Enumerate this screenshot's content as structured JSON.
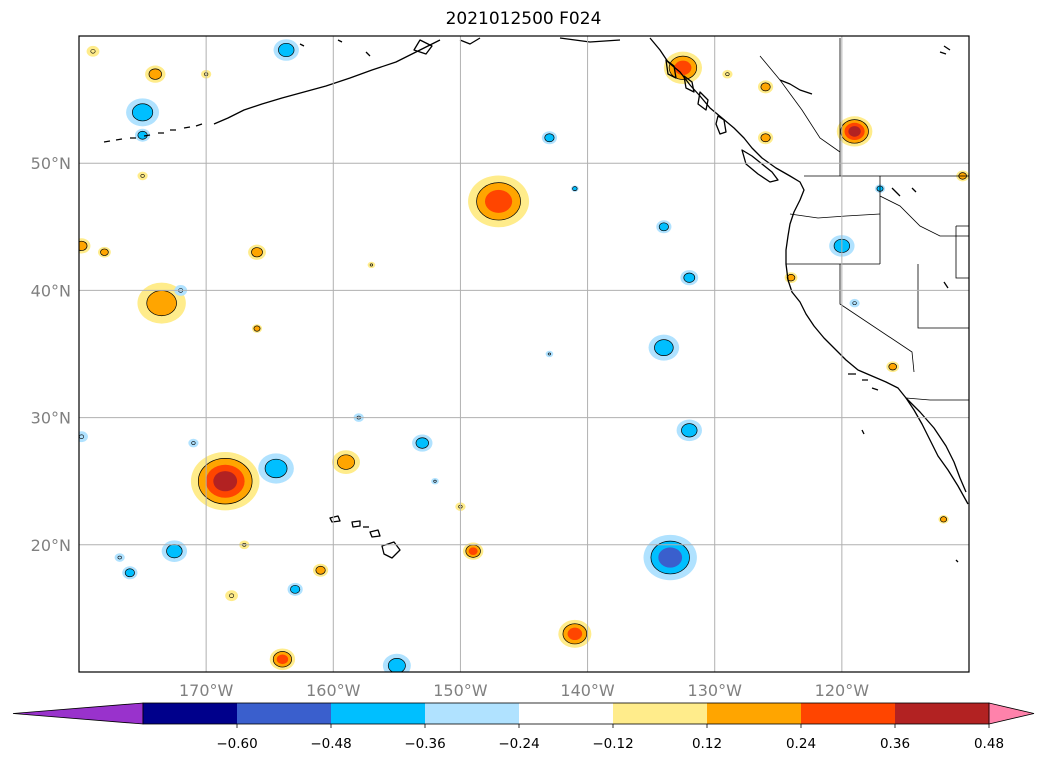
{
  "title": "2021012500 F024",
  "map": {
    "lon_range": [
      -180,
      -110
    ],
    "lat_range": [
      10,
      60
    ],
    "lon_ticks": [
      {
        "value": -170,
        "label": "170°W"
      },
      {
        "value": -160,
        "label": "160°W"
      },
      {
        "value": -150,
        "label": "150°W"
      },
      {
        "value": -140,
        "label": "140°W"
      },
      {
        "value": -130,
        "label": "130°W"
      },
      {
        "value": -120,
        "label": "120°W"
      }
    ],
    "lat_ticks": [
      {
        "value": 20,
        "label": "20°N"
      },
      {
        "value": 30,
        "label": "30°N"
      },
      {
        "value": 40,
        "label": "40°N"
      },
      {
        "value": 50,
        "label": "50°N"
      }
    ],
    "gridlines": true,
    "tick_label_color": "#808080"
  },
  "colorbar": {
    "orientation": "horizontal",
    "extend": "both",
    "bounds": [
      -0.6,
      -0.48,
      -0.36,
      -0.24,
      -0.12,
      0.12,
      0.24,
      0.36,
      0.48,
      0.6
    ],
    "labels": [
      "−0.60",
      "−0.48",
      "−0.36",
      "−0.24",
      "−0.12",
      "0.12",
      "0.24",
      "0.36",
      "0.48",
      "0.60"
    ],
    "colors": [
      "#9932cc",
      "#00008b",
      "#3a5fcd",
      "#00bfff",
      "#b0e2ff",
      "#ffffff",
      "#ffec8b",
      "#ffa500",
      "#ff4500",
      "#b22222",
      "#ff82ab"
    ]
  },
  "anomalies": [
    {
      "lon": -163.7,
      "lat": 58.9,
      "r": 1.0,
      "level": -2
    },
    {
      "lon": -178.9,
      "lat": 58.8,
      "r": 0.5,
      "level": 1
    },
    {
      "lon": -174.0,
      "lat": 57.0,
      "r": 0.8,
      "level": 2
    },
    {
      "lon": -170.0,
      "lat": 57.0,
      "r": 0.4,
      "level": 1
    },
    {
      "lon": -175.0,
      "lat": 54.0,
      "r": 1.3,
      "level": -2
    },
    {
      "lon": -175.0,
      "lat": 52.2,
      "r": 0.6,
      "level": -2
    },
    {
      "lon": -175.0,
      "lat": 49.0,
      "r": 0.4,
      "level": 1
    },
    {
      "lon": -179.8,
      "lat": 43.5,
      "r": 0.7,
      "level": 2
    },
    {
      "lon": -178.0,
      "lat": 43.0,
      "r": 0.5,
      "level": 2
    },
    {
      "lon": -166.0,
      "lat": 43.0,
      "r": 0.7,
      "level": 2
    },
    {
      "lon": -157.0,
      "lat": 42.0,
      "r": 0.3,
      "level": 1
    },
    {
      "lon": -173.5,
      "lat": 39.0,
      "r": 1.9,
      "level": 2
    },
    {
      "lon": -172.0,
      "lat": 40.0,
      "r": 0.5,
      "level": -1
    },
    {
      "lon": -166.0,
      "lat": 37.0,
      "r": 0.4,
      "level": 2
    },
    {
      "lon": -147.0,
      "lat": 47.0,
      "r": 2.4,
      "level": 3
    },
    {
      "lon": -143.0,
      "lat": 52.0,
      "r": 0.6,
      "level": -2
    },
    {
      "lon": -141.0,
      "lat": 48.0,
      "r": 0.3,
      "level": -2
    },
    {
      "lon": -134.0,
      "lat": 45.0,
      "r": 0.6,
      "level": -2
    },
    {
      "lon": -132.0,
      "lat": 41.0,
      "r": 0.7,
      "level": -2
    },
    {
      "lon": -134.0,
      "lat": 35.5,
      "r": 1.2,
      "level": -2
    },
    {
      "lon": -143.0,
      "lat": 35.0,
      "r": 0.3,
      "level": -1
    },
    {
      "lon": -132.0,
      "lat": 29.0,
      "r": 1.0,
      "level": -2
    },
    {
      "lon": -132.5,
      "lat": 57.5,
      "r": 1.5,
      "level": 3
    },
    {
      "lon": -129.0,
      "lat": 57.0,
      "r": 0.4,
      "level": 1
    },
    {
      "lon": -126.0,
      "lat": 56.0,
      "r": 0.6,
      "level": 2
    },
    {
      "lon": -126.0,
      "lat": 52.0,
      "r": 0.6,
      "level": 2
    },
    {
      "lon": -119.0,
      "lat": 52.5,
      "r": 1.4,
      "level": 4
    },
    {
      "lon": -124.0,
      "lat": 41.0,
      "r": 0.5,
      "level": 2
    },
    {
      "lon": -120.0,
      "lat": 43.5,
      "r": 1.0,
      "level": -2
    },
    {
      "lon": -119.0,
      "lat": 39.0,
      "r": 0.4,
      "level": -1
    },
    {
      "lon": -117.0,
      "lat": 48.0,
      "r": 0.4,
      "level": -2
    },
    {
      "lon": -116.0,
      "lat": 34.0,
      "r": 0.5,
      "level": 2
    },
    {
      "lon": -110.5,
      "lat": 49.0,
      "r": 0.5,
      "level": 2
    },
    {
      "lon": -112.0,
      "lat": 22.0,
      "r": 0.4,
      "level": 2
    },
    {
      "lon": -168.5,
      "lat": 25.0,
      "r": 2.7,
      "level": 4
    },
    {
      "lon": -164.5,
      "lat": 26.0,
      "r": 1.4,
      "level": -2
    },
    {
      "lon": -159.0,
      "lat": 26.5,
      "r": 1.1,
      "level": 2
    },
    {
      "lon": -158.0,
      "lat": 30.0,
      "r": 0.4,
      "level": -1
    },
    {
      "lon": -153.0,
      "lat": 28.0,
      "r": 0.8,
      "level": -2
    },
    {
      "lon": -171.0,
      "lat": 28.0,
      "r": 0.4,
      "level": -1
    },
    {
      "lon": -179.8,
      "lat": 28.5,
      "r": 0.5,
      "level": -1
    },
    {
      "lon": -152.0,
      "lat": 25.0,
      "r": 0.3,
      "level": -1
    },
    {
      "lon": -150.0,
      "lat": 23.0,
      "r": 0.4,
      "level": 1
    },
    {
      "lon": -172.5,
      "lat": 19.5,
      "r": 1.0,
      "level": -2
    },
    {
      "lon": -176.0,
      "lat": 17.8,
      "r": 0.6,
      "level": -2
    },
    {
      "lon": -176.8,
      "lat": 19.0,
      "r": 0.4,
      "level": -1
    },
    {
      "lon": -167.0,
      "lat": 20.0,
      "r": 0.4,
      "level": 1
    },
    {
      "lon": -168.0,
      "lat": 16.0,
      "r": 0.5,
      "level": 1
    },
    {
      "lon": -163.0,
      "lat": 16.5,
      "r": 0.6,
      "level": -2
    },
    {
      "lon": -161.0,
      "lat": 18.0,
      "r": 0.6,
      "level": 2
    },
    {
      "lon": -149.0,
      "lat": 19.5,
      "r": 0.8,
      "level": 3
    },
    {
      "lon": -133.5,
      "lat": 19.0,
      "r": 2.1,
      "level": -3
    },
    {
      "lon": -141.0,
      "lat": 13.0,
      "r": 1.3,
      "level": 3
    },
    {
      "lon": -164.0,
      "lat": 11.0,
      "r": 1.0,
      "level": 3
    },
    {
      "lon": -155.0,
      "lat": 10.5,
      "r": 1.1,
      "level": -2
    }
  ]
}
